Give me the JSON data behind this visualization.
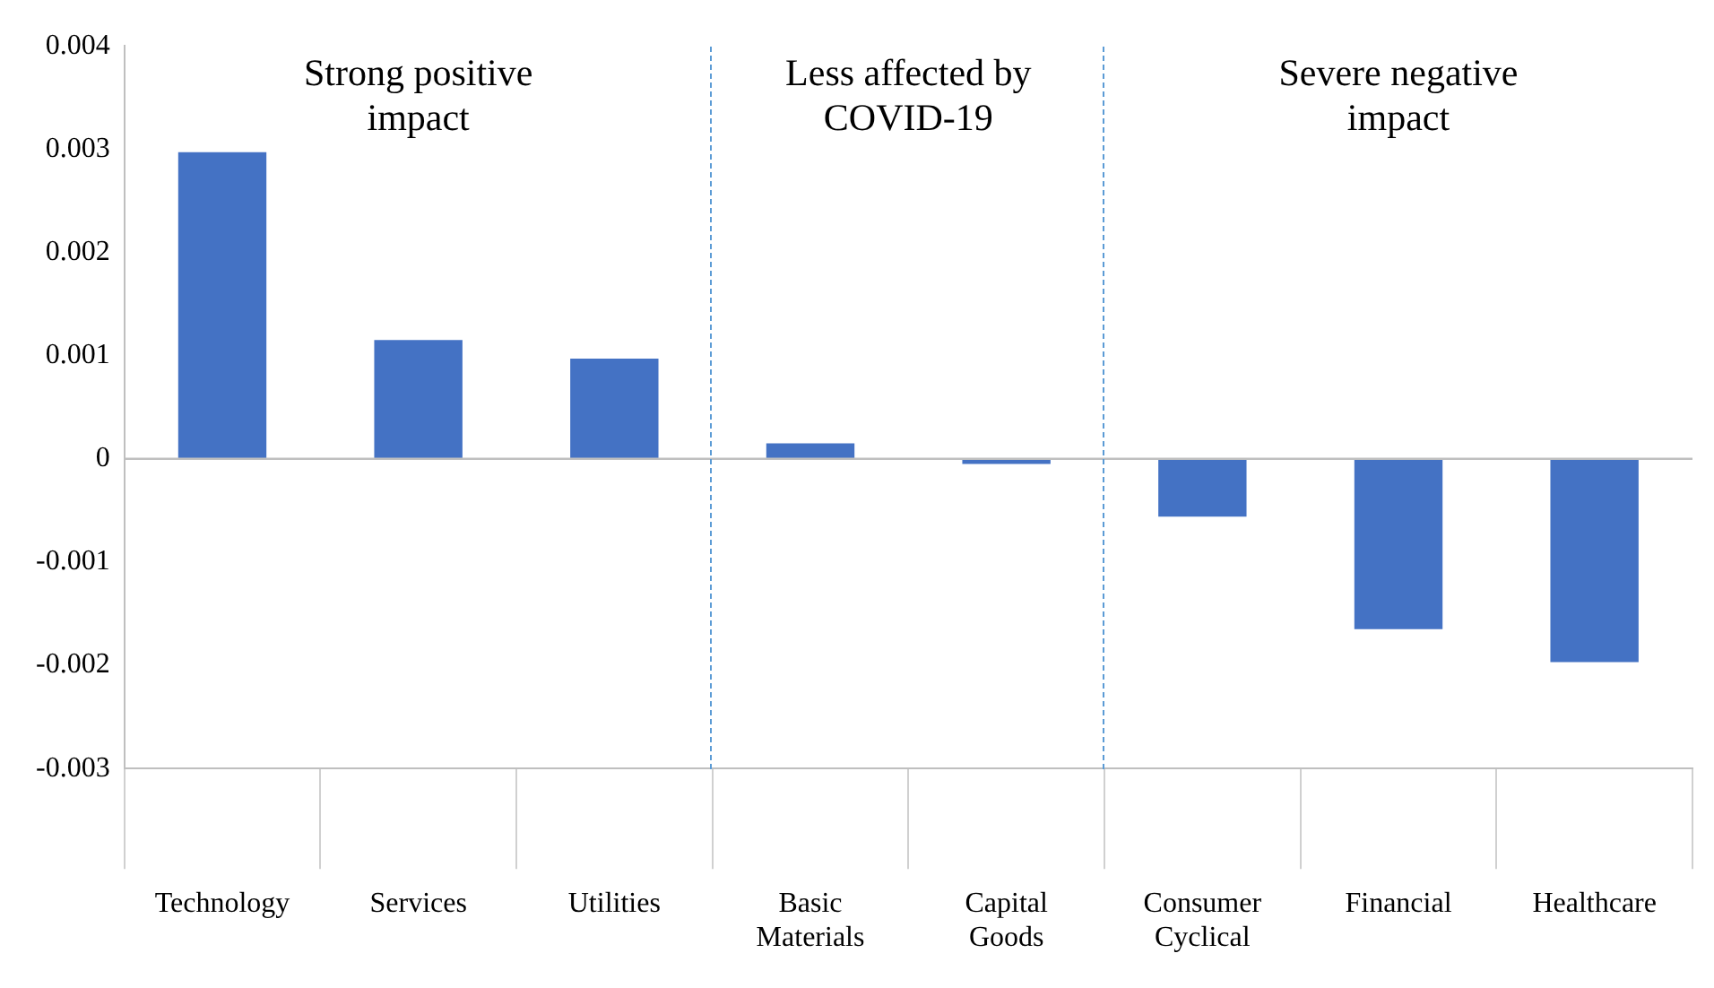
{
  "chart_data": {
    "type": "bar",
    "categories": [
      "Technology",
      "Services",
      "Utilities",
      "Basic Materials",
      "Capital Goods",
      "Consumer Cyclical",
      "Financial",
      "Healthcare"
    ],
    "values": [
      0.00297,
      0.00115,
      0.00097,
      0.00015,
      -5e-05,
      -0.00056,
      -0.00165,
      -0.00197
    ],
    "color": "#4472c4",
    "ylim": [
      -0.003,
      0.004
    ],
    "yticks": [
      -0.003,
      -0.002,
      -0.001,
      0,
      0.001,
      0.002,
      0.003,
      0.004
    ],
    "ref_lines": [
      {
        "axis": "y",
        "value": 0,
        "color": "#bfbfbf"
      }
    ],
    "annotations": [
      "Strong positive impact",
      "Less affected by COVID-19",
      "Severe negative impact"
    ]
  }
}
